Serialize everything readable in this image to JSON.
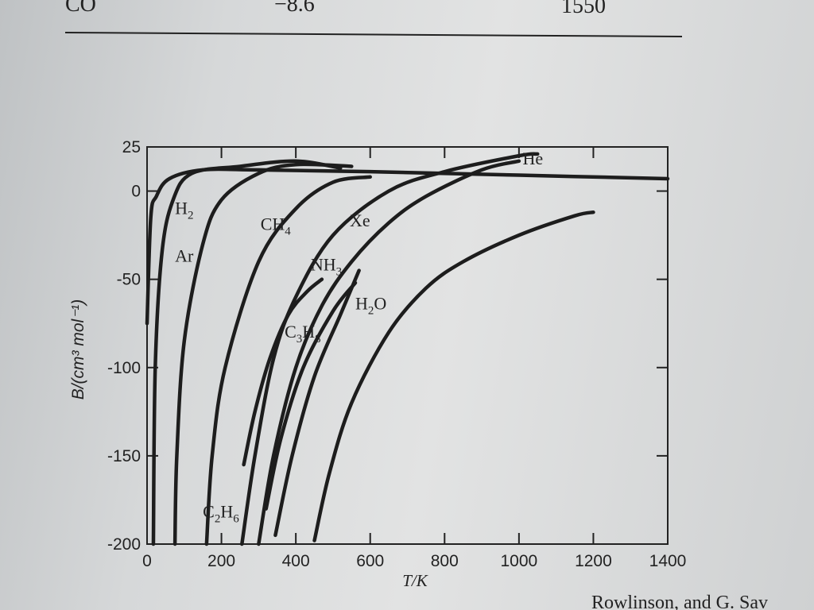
{
  "page": {
    "top_table": {
      "cells": [
        "CO",
        "−8.6",
        "1550"
      ]
    },
    "footer_text": "Rowlinson, and G. Sav"
  },
  "chart_data": {
    "type": "line",
    "title": "",
    "xlabel": "T/K",
    "ylabel": "B/(cm³ mol⁻¹)",
    "xlim": [
      0,
      1400
    ],
    "ylim": [
      -200,
      25
    ],
    "x_ticks": [
      0,
      200,
      400,
      600,
      800,
      1000,
      1200,
      1400
    ],
    "y_ticks": [
      25,
      0,
      -50,
      -100,
      -150,
      -200
    ],
    "x_tick_labels": [
      "0",
      "200",
      "400",
      "600",
      "800",
      "1000",
      "1200",
      "1400"
    ],
    "y_tick_labels": [
      "25",
      "0",
      "-50",
      "-100",
      "-150",
      "-200"
    ],
    "grid": false,
    "series": [
      {
        "name": "He",
        "label_html": [
          "He"
        ],
        "x": [
          0,
          10,
          25,
          60,
          150,
          300,
          600,
          1000,
          1400
        ],
        "y": [
          -75,
          -15,
          -3,
          7,
          12,
          12,
          11,
          9,
          7
        ]
      },
      {
        "name": "H2",
        "label_html": [
          "H",
          "2",
          ""
        ],
        "x": [
          17,
          22,
          40,
          70,
          120,
          250,
          400,
          520
        ],
        "y": [
          -200,
          -100,
          -35,
          -5,
          10,
          14,
          17,
          13
        ]
      },
      {
        "name": "Ar",
        "label_html": [
          "Ar"
        ],
        "x": [
          75,
          80,
          100,
          150,
          200,
          300,
          400,
          550
        ],
        "y": [
          -200,
          -150,
          -85,
          -30,
          -5,
          10,
          15,
          14
        ]
      },
      {
        "name": "CH4",
        "label_html": [
          "CH",
          "4",
          ""
        ],
        "x": [
          160,
          175,
          210,
          300,
          400,
          500,
          600
        ],
        "y": [
          -200,
          -150,
          -100,
          -40,
          -10,
          5,
          8
        ]
      },
      {
        "name": "Xe",
        "label_html": [
          "Xe"
        ],
        "x": [
          255,
          290,
          340,
          400,
          500,
          650,
          800,
          1000,
          1050
        ],
        "y": [
          -200,
          -150,
          -95,
          -60,
          -25,
          0,
          11,
          20,
          21
        ]
      },
      {
        "name": "C2H6",
        "label_html": [
          "C",
          "2",
          "H",
          "6",
          ""
        ],
        "x": [
          300,
          340,
          400,
          470,
          550,
          650,
          750,
          900,
          1000
        ],
        "y": [
          -200,
          -150,
          -100,
          -65,
          -40,
          -18,
          -3,
          12,
          17
        ]
      },
      {
        "name": "NH3",
        "label_html": [
          "NH",
          "3",
          ""
        ],
        "x": [
          320,
          360,
          420,
          500,
          560
        ],
        "y": [
          -180,
          -140,
          -100,
          -68,
          -52
        ]
      },
      {
        "name": "C3H8",
        "label_html": [
          "C",
          "3",
          "H",
          "8",
          ""
        ],
        "x": [
          345,
          390,
          450,
          520,
          570
        ],
        "y": [
          -195,
          -150,
          -105,
          -70,
          -45
        ]
      },
      {
        "name": "H2O",
        "label_html": [
          "H",
          "2",
          "O"
        ],
        "x": [
          450,
          490,
          550,
          650,
          750,
          850,
          1000,
          1150,
          1200
        ],
        "y": [
          -198,
          -160,
          -120,
          -80,
          -55,
          -40,
          -25,
          -14,
          -12
        ]
      }
    ],
    "extra_partial_curve": {
      "x": [
        260,
        290,
        330,
        380,
        430,
        470
      ],
      "y": [
        -155,
        -125,
        -95,
        -70,
        -57,
        -50
      ]
    },
    "labels": [
      {
        "series": "He",
        "x": 1010,
        "y": 15
      },
      {
        "series": "H2",
        "x": 75,
        "y": -13
      },
      {
        "series": "Ar",
        "x": 75,
        "y": -40
      },
      {
        "series": "CH4",
        "x": 305,
        "y": -22
      },
      {
        "series": "Xe",
        "x": 545,
        "y": -20
      },
      {
        "series": "NH3",
        "x": 440,
        "y": -45
      },
      {
        "series": "C3H8",
        "x": 370,
        "y": -83
      },
      {
        "series": "H2O",
        "x": 560,
        "y": -67
      },
      {
        "series": "C2H6",
        "x": 150,
        "y": -185
      }
    ]
  }
}
